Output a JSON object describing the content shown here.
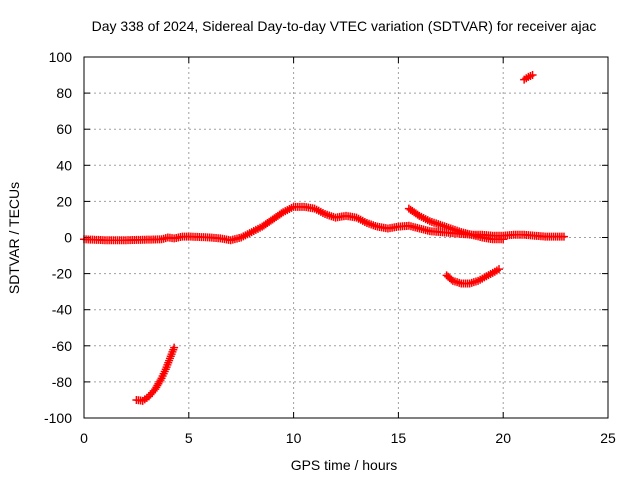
{
  "chart_data": {
    "type": "scatter",
    "title": "Day 338 of 2024, Sidereal Day-to-day VTEC variation (SDTVAR) for receiver ajac",
    "xlabel": "GPS time / hours",
    "ylabel": "SDTVAR / TECUs",
    "xlim": [
      0,
      25
    ],
    "ylim": [
      -100,
      100
    ],
    "xticks": [
      0,
      5,
      10,
      15,
      20,
      25
    ],
    "yticks": [
      -100,
      -80,
      -60,
      -40,
      -20,
      0,
      20,
      40,
      60,
      80,
      100
    ],
    "grid": true,
    "marker_color": "#ff0000",
    "series": [
      {
        "name": "main-track",
        "x": [
          0.0,
          1.0,
          2.0,
          3.0,
          3.7,
          4.0,
          4.3,
          4.7,
          5.0,
          5.5,
          6.0,
          6.5,
          7.0,
          7.5,
          8.0,
          8.5,
          9.0,
          9.5,
          10.0,
          10.5,
          11.0,
          11.5,
          12.0,
          12.5,
          13.0,
          13.5,
          14.0,
          14.5,
          15.0,
          15.5,
          16.0,
          16.5,
          17.0,
          17.5,
          18.0,
          18.5,
          19.0,
          19.5,
          20.0,
          20.5,
          21.0,
          21.5,
          22.0,
          22.5,
          22.9
        ],
        "y": [
          -1.0,
          -1.5,
          -1.5,
          -1.2,
          -1.0,
          0.0,
          -0.5,
          0.5,
          0.5,
          0.3,
          0.0,
          -0.5,
          -1.5,
          0.0,
          3.0,
          6.0,
          10.0,
          14.0,
          17.0,
          17.0,
          16.0,
          13.0,
          11.0,
          12.0,
          11.0,
          8.0,
          6.0,
          5.0,
          6.0,
          6.5,
          5.0,
          3.5,
          3.0,
          2.5,
          2.0,
          1.5,
          1.5,
          1.0,
          1.0,
          1.5,
          1.5,
          1.0,
          0.5,
          0.5,
          0.5
        ]
      },
      {
        "name": "upper-branch",
        "x": [
          15.5,
          16.0,
          16.5,
          17.0,
          17.5,
          18.0,
          18.5,
          19.0,
          19.5,
          20.0
        ],
        "y": [
          16.0,
          12.0,
          9.0,
          7.0,
          5.0,
          3.0,
          1.5,
          0.0,
          -1.0,
          -1.0
        ]
      },
      {
        "name": "lower-arc",
        "x": [
          17.3,
          17.6,
          18.0,
          18.4,
          18.8,
          19.2,
          19.6,
          19.8
        ],
        "y": [
          -21.0,
          -24.0,
          -25.5,
          -25.5,
          -24.0,
          -21.5,
          -19.0,
          -17.5
        ]
      },
      {
        "name": "deep-arc",
        "x": [
          2.5,
          2.8,
          3.1,
          3.4,
          3.7,
          3.9,
          4.1,
          4.3
        ],
        "y": [
          -90.0,
          -90.5,
          -88.0,
          -84.0,
          -78.0,
          -73.0,
          -67.0,
          -61.0
        ]
      },
      {
        "name": "outlier",
        "x": [
          21.0,
          21.2,
          21.4
        ],
        "y": [
          87.5,
          89.0,
          90.0
        ]
      }
    ]
  }
}
